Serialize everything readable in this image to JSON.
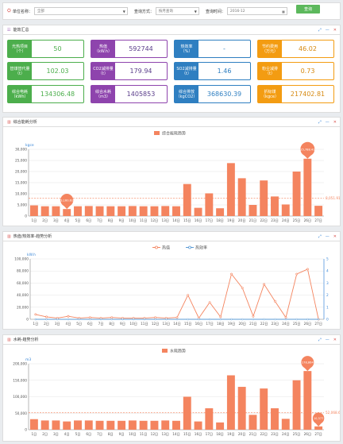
{
  "filters": {
    "unit_label": "单位名称：",
    "unit_value": "全部",
    "mode_label": "查询方式：",
    "mode_value": "按月查询",
    "time_label": "查询时间：",
    "time_value": "2016-12",
    "query_label": "查询"
  },
  "summary": {
    "title": "能效汇总",
    "cards": [
      {
        "label1": "光热项目",
        "label2": "（个）",
        "value": "50",
        "color": "g"
      },
      {
        "label1": "热值",
        "label2": "（kW.h）",
        "value": "592744",
        "color": "p"
      },
      {
        "label1": "热效率",
        "label2": "（%）",
        "value": "-",
        "color": "b"
      },
      {
        "label1": "节约费用",
        "label2": "（万元）",
        "value": "46.02",
        "color": "o"
      },
      {
        "label1": "替煤替代量",
        "label2": "（t）",
        "value": "102.03",
        "color": "g"
      },
      {
        "label1": "CO2减排量",
        "label2": "（t）",
        "value": "179.94",
        "color": "p"
      },
      {
        "label1": "SO2减排量",
        "label2": "（t）",
        "value": "1.46",
        "color": "b"
      },
      {
        "label1": "粉尘减排",
        "label2": "（t）",
        "value": "0.73",
        "color": "o"
      },
      {
        "label1": "综合电耗",
        "label2": "（kWh）",
        "value": "134306.48",
        "color": "g"
      },
      {
        "label1": "综合水耗",
        "label2": "（m3）",
        "value": "1405853",
        "color": "p"
      },
      {
        "label1": "综合排放",
        "label2": "（kgCO2）",
        "value": "368630.39",
        "color": "b"
      },
      {
        "label1": "折标煤",
        "label2": "（kgce）",
        "value": "217402.81",
        "color": "o"
      }
    ]
  },
  "charts_titles": {
    "energy": "综合能耗分析",
    "heat": "热值/热效率-趋势分析",
    "water": "水耗-趋势分析"
  },
  "chart_data": [
    {
      "type": "bar",
      "legend": [
        "综合能耗趋势"
      ],
      "ylabel": "kgce",
      "ylim": [
        0,
        30000
      ],
      "yticks": [
        "0",
        "5,000",
        "10,000",
        "15,000",
        "20,000",
        "25,000",
        "30,000"
      ],
      "categories": [
        "1日",
        "2日",
        "3日",
        "4日",
        "5日",
        "6日",
        "7日",
        "8日",
        "9日",
        "10日",
        "11日",
        "12日",
        "13日",
        "14日",
        "15日",
        "16日",
        "17日",
        "18日",
        "19日",
        "20日",
        "21日",
        "22日",
        "23日",
        "24日",
        "25日",
        "26日",
        "27日"
      ],
      "values": [
        4800,
        4400,
        4400,
        3161,
        4400,
        4500,
        4400,
        4400,
        4400,
        4500,
        4400,
        4400,
        4500,
        4400,
        14400,
        3700,
        10200,
        3500,
        23800,
        17000,
        5000,
        16000,
        8800,
        5200,
        20000,
        25789,
        4600
      ],
      "avg": 8051,
      "avg_label": "8,051.91",
      "min_label": "3,160.61",
      "max_label": "25,788.41",
      "color": "#f4845f"
    },
    {
      "type": "line",
      "legend": [
        "热值",
        "热效率"
      ],
      "ylabel": "kW.h",
      "ylim": [
        0,
        100000
      ],
      "yticks": [
        "0",
        "20,000",
        "40,000",
        "60,000",
        "80,000",
        "100,000"
      ],
      "y2ticks": [
        "0",
        "1",
        "2",
        "3",
        "4",
        "5"
      ],
      "categories": [
        "1日",
        "2日",
        "3日",
        "4日",
        "5日",
        "6日",
        "7日",
        "8日",
        "9日",
        "10日",
        "11日",
        "12日",
        "13日",
        "14日",
        "15日",
        "16日",
        "17日",
        "18日",
        "19日",
        "20日",
        "21日",
        "22日",
        "23日",
        "24日",
        "25日",
        "26日",
        "27日"
      ],
      "values": [
        8000,
        4000,
        2000,
        5000,
        2000,
        3000,
        2000,
        3000,
        2000,
        2000,
        2000,
        3000,
        2000,
        3000,
        40000,
        2000,
        28000,
        4000,
        75000,
        52000,
        5000,
        58000,
        30000,
        3000,
        75000,
        83000,
        0
      ],
      "values2": [
        0,
        0,
        0,
        0,
        0,
        0,
        0,
        0,
        0,
        0,
        0,
        0,
        0,
        0,
        0,
        0,
        0,
        0,
        0,
        0,
        0,
        0,
        0,
        0,
        0,
        0,
        0
      ],
      "color": "#f4845f",
      "color2": "#5b9bd5"
    },
    {
      "type": "bar",
      "legend": [
        "水耗趋势"
      ],
      "ylabel": "m3",
      "ylim": [
        0,
        200000
      ],
      "yticks": [
        "0",
        "50,000",
        "100,000",
        "150,000",
        "200,000"
      ],
      "categories": [
        "1日",
        "2日",
        "3日",
        "4日",
        "5日",
        "6日",
        "7日",
        "8日",
        "9日",
        "10日",
        "11日",
        "12日",
        "13日",
        "14日",
        "15日",
        "16日",
        "17日",
        "18日",
        "19日",
        "20日",
        "21日",
        "22日",
        "23日",
        "24日",
        "25日",
        "26日",
        "27日"
      ],
      "values": [
        32000,
        28000,
        28000,
        25000,
        28000,
        28000,
        27000,
        27000,
        27000,
        28000,
        27000,
        27000,
        28000,
        27000,
        100000,
        25000,
        65000,
        22000,
        165000,
        130000,
        45000,
        125000,
        65000,
        33000,
        150000,
        178000,
        10000
      ],
      "avg": 52000,
      "avg_label": "52,068.6",
      "min_label": "10,377",
      "max_label": "178,864",
      "color": "#f4845f"
    }
  ]
}
